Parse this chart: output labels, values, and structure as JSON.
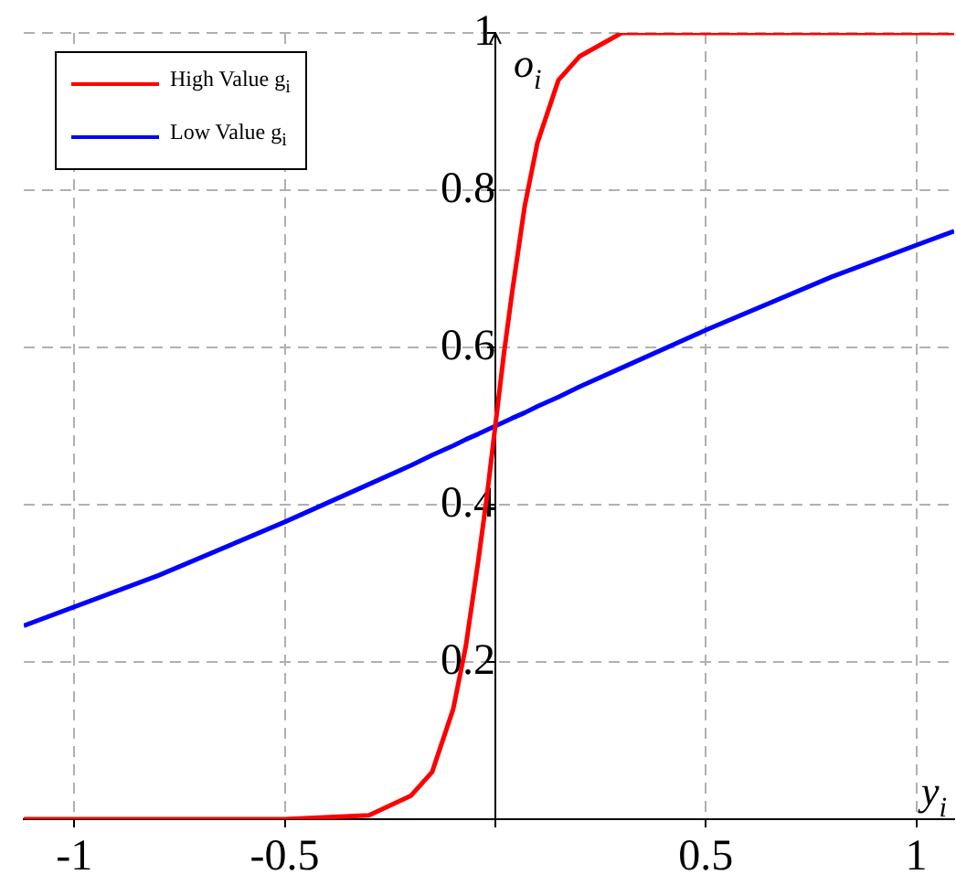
{
  "chart_data": {
    "type": "line",
    "xlabel": "y$_{i}$",
    "ylabel": "o$_{i}$",
    "x": [
      -1.12,
      -0.8,
      -0.5,
      -0.3,
      -0.2,
      -0.15,
      -0.1,
      -0.07,
      -0.04,
      -0.02,
      0,
      0.02,
      0.04,
      0.07,
      0.1,
      0.15,
      0.2,
      0.3,
      0.5,
      0.8,
      1.09
    ],
    "series": [
      {
        "name": "High Value g$_{i}$",
        "color": "#ff0000",
        "values": [
          0,
          0,
          0,
          0.005,
          0.03,
          0.06,
          0.14,
          0.22,
          0.33,
          0.41,
          0.5,
          0.59,
          0.67,
          0.78,
          0.86,
          0.94,
          0.97,
          1,
          1,
          1,
          1
        ]
      },
      {
        "name": "Low Value g$_{i}$",
        "color": "#0000ff",
        "values": [
          0.246,
          0.31,
          0.378,
          0.426,
          0.45,
          0.463,
          0.475,
          0.483,
          0.49,
          0.495,
          0.5,
          0.505,
          0.51,
          0.517,
          0.525,
          0.537,
          0.55,
          0.574,
          0.622,
          0.69,
          0.748
        ]
      }
    ],
    "xlim": [
      -1.12,
      1.09
    ],
    "ylim": [
      0,
      1
    ],
    "xticks": [
      -1,
      -0.5,
      {
        "value": 0,
        "label": null
      },
      0.5,
      1
    ],
    "yticks": [
      {
        "value": 0,
        "label": null
      },
      0.2,
      0.4,
      0.6,
      0.8,
      1
    ],
    "grid": true,
    "legend": "top left",
    "marker": "none",
    "line_style": "solid"
  }
}
